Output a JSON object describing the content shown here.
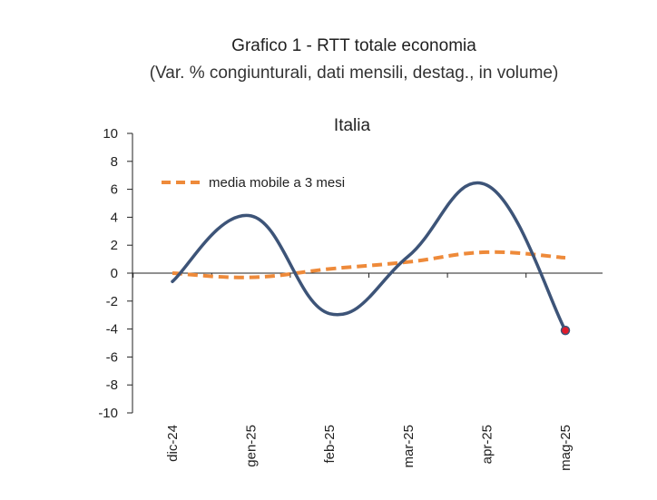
{
  "title": "Grafico 1 - RTT totale economia",
  "subtitle": "(Var. % congiunturali, dati mensili, destag., in volume)",
  "chart_data": {
    "type": "line",
    "panel_title": "Italia",
    "categories": [
      "dic-24",
      "gen-25",
      "feb-25",
      "mar-25",
      "apr-25",
      "mag-25"
    ],
    "series": [
      {
        "values": [
          -0.6,
          4.1,
          -2.9,
          1.2,
          6.3,
          -4.1
        ],
        "color": "#3d5478",
        "style": "solid",
        "last_point_marker_color": "#e01b2b"
      },
      {
        "name": "media mobile a 3 mesi",
        "values": [
          0.0,
          -0.3,
          0.3,
          0.8,
          1.5,
          1.1
        ],
        "color": "#ee8a3a",
        "style": "dashed"
      }
    ],
    "y_ticks": [
      "10",
      "8",
      "6",
      "4",
      "2",
      "0",
      "-2",
      "-4",
      "-6",
      "-8",
      "-10"
    ],
    "ylim": [
      -10,
      10
    ],
    "legend_position": "top-left",
    "grid": false
  }
}
